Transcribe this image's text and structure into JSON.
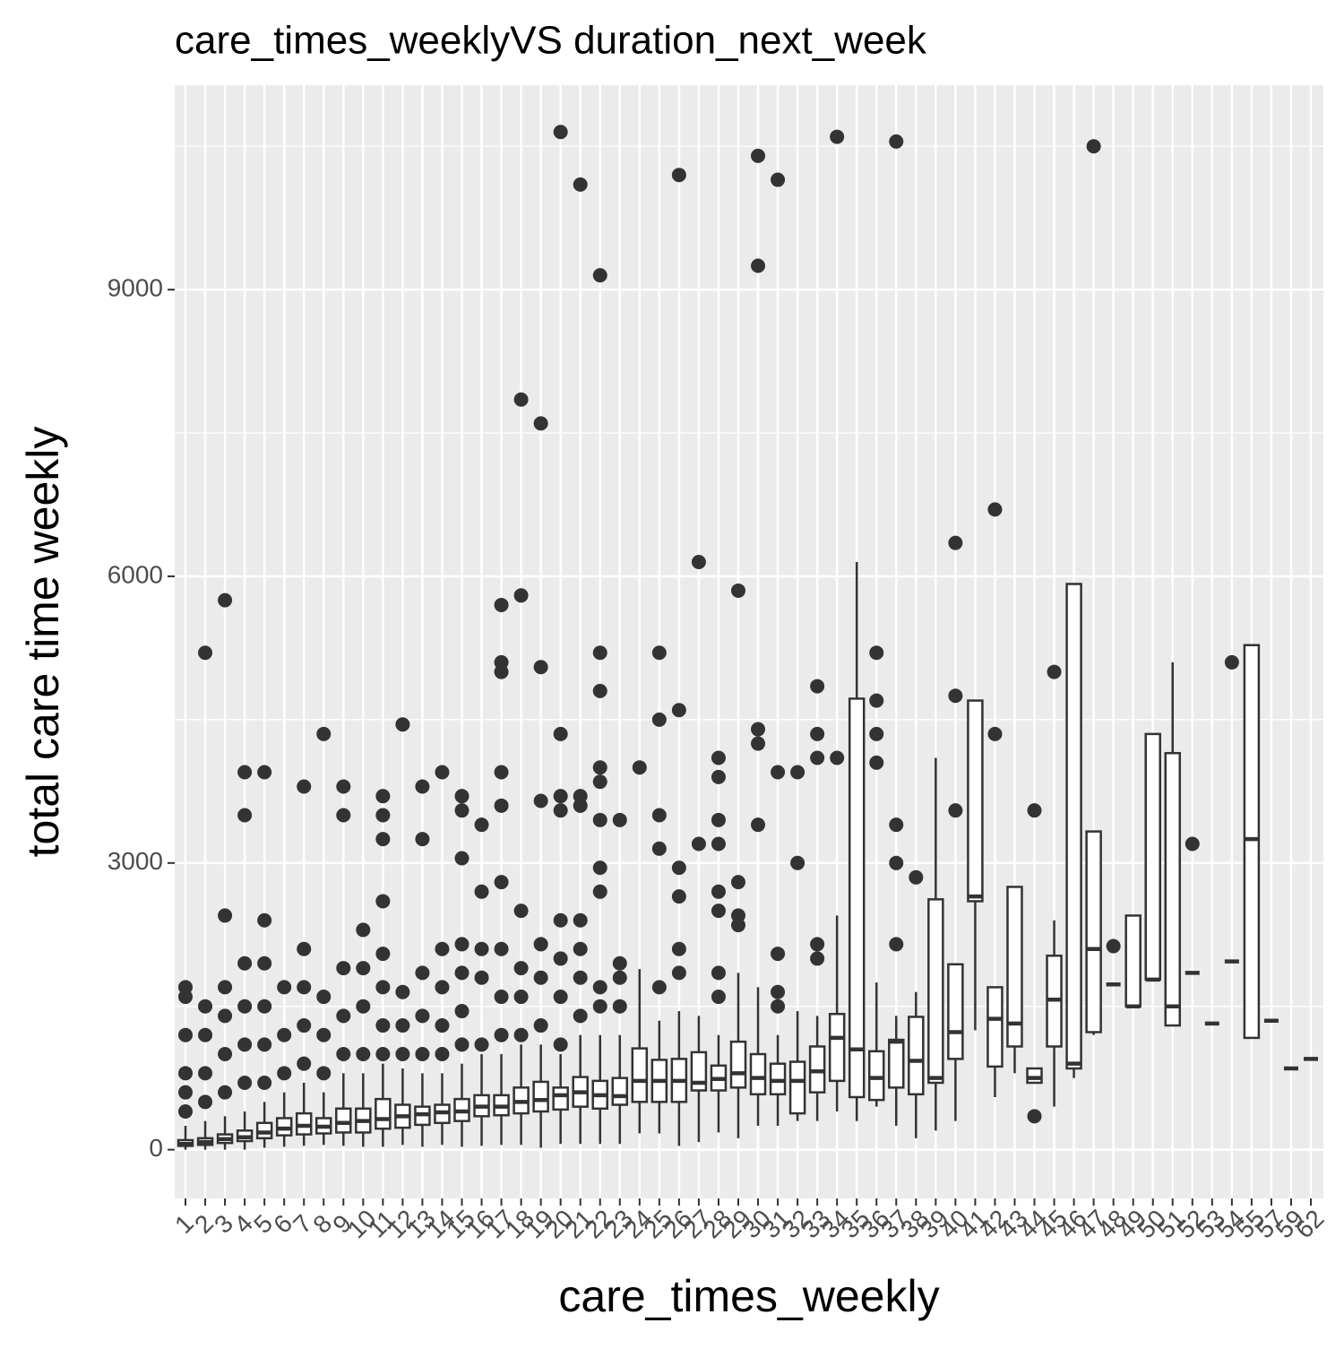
{
  "chart_data": {
    "type": "boxplot",
    "title": "care_times_weeklyVS duration_next_week",
    "x_label": "care_times_weekly",
    "y_label": "total care time weekly",
    "categories": [
      "1",
      "2",
      "3",
      "4",
      "5",
      "6",
      "7",
      "8",
      "9",
      "10",
      "11",
      "12",
      "13",
      "14",
      "15",
      "16",
      "17",
      "18",
      "19",
      "20",
      "21",
      "22",
      "23",
      "24",
      "25",
      "26",
      "27",
      "28",
      "29",
      "30",
      "31",
      "32",
      "33",
      "34",
      "35",
      "36",
      "37",
      "38",
      "39",
      "40",
      "41",
      "42",
      "43",
      "44",
      "45",
      "46",
      "47",
      "48",
      "49",
      "50",
      "51",
      "52",
      "53",
      "54",
      "55",
      "57",
      "59",
      "62"
    ],
    "low": [
      0,
      0,
      0,
      0,
      20,
      30,
      40,
      50,
      40,
      30,
      30,
      50,
      30,
      50,
      30,
      40,
      50,
      50,
      20,
      60,
      60,
      60,
      60,
      170,
      170,
      40,
      80,
      180,
      120,
      250,
      250,
      300,
      300,
      400,
      300,
      450,
      250,
      120,
      200,
      300,
      1250,
      550,
      800,
      700,
      450,
      750,
      1200,
      1730,
      1500,
      1780,
      1300,
      1850,
      1320,
      1970,
      1170,
      1350,
      850,
      950
    ],
    "q1": [
      40,
      50,
      70,
      90,
      120,
      150,
      160,
      170,
      180,
      180,
      220,
      230,
      260,
      280,
      300,
      350,
      360,
      380,
      400,
      420,
      450,
      430,
      470,
      500,
      500,
      500,
      620,
      620,
      650,
      580,
      580,
      380,
      600,
      720,
      550,
      520,
      650,
      580,
      700,
      950,
      2600,
      870,
      1080,
      700,
      1080,
      850,
      1230,
      1730,
      1500,
      1780,
      1300,
      1850,
      1320,
      1970,
      1170,
      1350,
      850,
      950
    ],
    "median": [
      60,
      80,
      110,
      130,
      180,
      220,
      250,
      240,
      280,
      300,
      320,
      350,
      370,
      390,
      400,
      450,
      450,
      500,
      520,
      570,
      600,
      570,
      560,
      720,
      720,
      720,
      700,
      740,
      800,
      750,
      720,
      720,
      820,
      1170,
      1050,
      750,
      1130,
      930,
      750,
      1230,
      2650,
      1370,
      1320,
      750,
      1570,
      900,
      2100,
      1730,
      1500,
      1780,
      1500,
      1850,
      1320,
      1970,
      3250,
      1350,
      850,
      950
    ],
    "q3": [
      100,
      120,
      160,
      200,
      280,
      330,
      380,
      330,
      430,
      430,
      530,
      470,
      450,
      470,
      530,
      570,
      570,
      650,
      710,
      650,
      760,
      720,
      750,
      1060,
      940,
      950,
      1020,
      880,
      1130,
      1000,
      900,
      920,
      1080,
      1420,
      4720,
      1030,
      1150,
      1390,
      2620,
      1940,
      4700,
      1700,
      2750,
      850,
      2030,
      5920,
      3330,
      1730,
      2450,
      4350,
      4150,
      1850,
      1320,
      1970,
      5280,
      1350,
      850,
      950
    ],
    "high": [
      250,
      300,
      350,
      400,
      500,
      600,
      700,
      600,
      800,
      800,
      900,
      850,
      800,
      800,
      900,
      1000,
      1000,
      1100,
      1100,
      1000,
      1200,
      1200,
      1200,
      1890,
      1350,
      1450,
      1400,
      1200,
      1850,
      1700,
      1200,
      1450,
      1400,
      2450,
      6150,
      1750,
      1400,
      1650,
      4100,
      1950,
      4700,
      1700,
      2750,
      850,
      2400,
      5920,
      3330,
      1730,
      2450,
      4350,
      5100,
      1850,
      1320,
      1970,
      5280,
      1350,
      850,
      950
    ],
    "outliers": [
      [
        400,
        600,
        800,
        1200,
        1600,
        1700
      ],
      [
        500,
        800,
        1200,
        1500,
        5200
      ],
      [
        600,
        1000,
        1400,
        1700,
        2450,
        5750
      ],
      [
        700,
        1100,
        1500,
        1950,
        3500,
        3950
      ],
      [
        700,
        1100,
        1500,
        1950,
        2400,
        3950
      ],
      [
        800,
        1200,
        1700
      ],
      [
        900,
        1300,
        1700,
        2100,
        3800
      ],
      [
        800,
        1200,
        1600,
        4350
      ],
      [
        1000,
        1400,
        1900,
        3500,
        3800
      ],
      [
        1000,
        1500,
        1900,
        2300
      ],
      [
        1000,
        1300,
        1700,
        2050,
        2600,
        3250,
        3500,
        3700
      ],
      [
        1000,
        1300,
        1650,
        4450
      ],
      [
        1000,
        1400,
        1850,
        3250,
        3800
      ],
      [
        1000,
        1300,
        1700,
        2100,
        3950
      ],
      [
        1100,
        1450,
        1850,
        2150,
        3050,
        3550,
        3700
      ],
      [
        1100,
        1800,
        2100,
        2700,
        3400
      ],
      [
        1200,
        1600,
        2100,
        2800,
        3600,
        3950,
        5000,
        5100,
        5700
      ],
      [
        1200,
        1600,
        1900,
        2500,
        5800,
        7850
      ],
      [
        1300,
        1800,
        2150,
        3650,
        5050,
        7600
      ],
      [
        1100,
        1600,
        2000,
        2400,
        3550,
        3700,
        4350,
        10650
      ],
      [
        1400,
        1800,
        2100,
        2400,
        3600,
        3700,
        10100
      ],
      [
        1500,
        1700,
        2700,
        2950,
        3450,
        3850,
        4000,
        4800,
        5200,
        9150
      ],
      [
        1500,
        1800,
        1950,
        3450
      ],
      [
        4000
      ],
      [
        1700,
        3150,
        3500,
        4500,
        5200
      ],
      [
        1850,
        2100,
        2650,
        2950,
        4600,
        10200
      ],
      [
        3200,
        6150
      ],
      [
        1600,
        1850,
        2500,
        2700,
        3200,
        3450,
        3900,
        4100
      ],
      [
        2350,
        2450,
        2800,
        5850
      ],
      [
        3400,
        4250,
        4400,
        9250,
        10400
      ],
      [
        1500,
        1650,
        2050,
        3950,
        10150
      ],
      [
        3000,
        3950
      ],
      [
        2000,
        2150,
        4100,
        4350,
        4850
      ],
      [
        4100,
        10600
      ],
      [],
      [
        4050,
        4350,
        4700,
        5200
      ],
      [
        2150,
        3000,
        3400,
        10550
      ],
      [
        2850
      ],
      [],
      [
        3550,
        4750,
        6350
      ],
      [],
      [
        4350,
        6700
      ],
      [],
      [
        350,
        3550
      ],
      [
        5000
      ],
      [],
      [
        10500
      ],
      [
        2130
      ],
      [],
      [],
      [],
      [
        3200
      ],
      [],
      [
        5100
      ],
      [],
      [],
      [],
      []
    ],
    "ylim": [
      -510,
      11140
    ],
    "yticks": [
      0,
      3000,
      6000,
      9000
    ],
    "grid": true,
    "panel_color": "#ebebeb",
    "box_color": "#333333"
  }
}
